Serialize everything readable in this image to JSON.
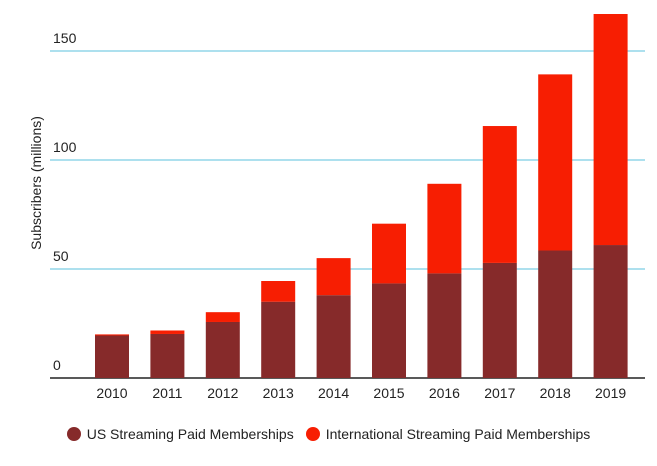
{
  "chart_data": {
    "type": "bar",
    "stacked": true,
    "categories": [
      "2010",
      "2011",
      "2012",
      "2013",
      "2014",
      "2015",
      "2016",
      "2017",
      "2018",
      "2019"
    ],
    "series": [
      {
        "name": "US Streaming Paid Memberships",
        "color": "#862a2a",
        "values": [
          19.5,
          20.2,
          25.7,
          35.0,
          38.0,
          43.4,
          48.0,
          52.8,
          58.5,
          61.0
        ]
      },
      {
        "name": "International Streaming Paid Memberships",
        "color": "#f71e02",
        "values": [
          0.5,
          1.6,
          4.5,
          9.5,
          17.0,
          27.4,
          41.1,
          62.8,
          80.8,
          106.0
        ]
      }
    ],
    "xlabel": "",
    "ylabel": "Subscribers (millions)",
    "yticks": [
      0,
      50,
      100,
      150
    ],
    "ylim": [
      0,
      167
    ],
    "grid": true,
    "grid_color": "#5bc0de",
    "legend_position": "bottom"
  }
}
